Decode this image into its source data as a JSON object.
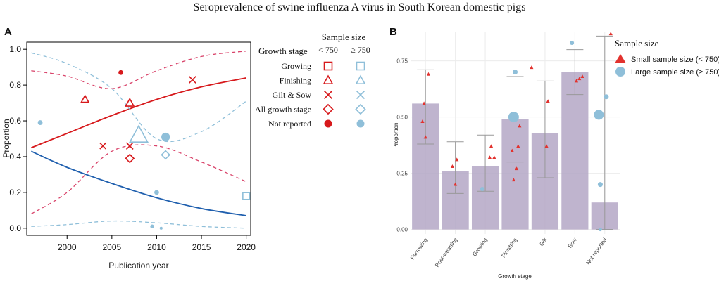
{
  "figure_title": "Seroprevalence of swine influenza A virus in South Korean domestic pigs",
  "colors": {
    "red": "#d7191c",
    "redDash": "#d9436a",
    "blue": "#1f5fae",
    "lightBlue": "#8fbfd9",
    "bar": "#b4a7c6",
    "grid": "#ececec",
    "errorbar": "#999999",
    "tri": "#e2322e"
  },
  "chart_data": [
    {
      "panel_label": "A",
      "type": "scatter",
      "title": "",
      "xlabel": "Publication year",
      "ylabel": "Proportion",
      "xlim": [
        1995.5,
        2020.5
      ],
      "ylim": [
        -0.04,
        1.04
      ],
      "x_ticks": [
        2000,
        2005,
        2010,
        2015,
        2020
      ],
      "x_tick_labels": [
        "2000",
        "2005",
        "2010",
        "2015",
        "2020"
      ],
      "y_ticks": [
        0,
        0.2,
        0.4,
        0.6,
        0.8,
        1.0
      ],
      "y_tick_labels": [
        "0.0",
        "0.2",
        "0.4",
        "0.6",
        "0.8",
        "1.0"
      ],
      "legend": {
        "title": "Growth stage",
        "header": "Sample size",
        "col_small": "< 750",
        "col_large": "≥ 750",
        "rows": [
          {
            "label": "Growing",
            "shape": "square"
          },
          {
            "label": "Finishing",
            "shape": "triangle"
          },
          {
            "label": "Gilt & Sow",
            "shape": "cross"
          },
          {
            "label": "All growth stage",
            "shape": "diamond"
          },
          {
            "label": "Not reported",
            "shape": "circle"
          }
        ]
      },
      "series": [
        {
          "name": "Sample size < 750",
          "stats_fit": "red",
          "points": [
            {
              "x": 2006,
              "y": 0.87,
              "shape": "circle",
              "size": 1
            },
            {
              "x": 2014,
              "y": 0.83,
              "shape": "cross",
              "size": 1
            },
            {
              "x": 2002,
              "y": 0.72,
              "shape": "triangle",
              "size": 1
            },
            {
              "x": 2007,
              "y": 0.7,
              "shape": "triangle",
              "size": 1.1
            },
            {
              "x": 2004,
              "y": 0.46,
              "shape": "cross",
              "size": 0.9
            },
            {
              "x": 2007,
              "y": 0.46,
              "shape": "cross",
              "size": 1
            },
            {
              "x": 2007,
              "y": 0.39,
              "shape": "diamond",
              "size": 1
            }
          ]
        },
        {
          "name": "Sample size ≥ 750",
          "stats_fit": "blue",
          "points": [
            {
              "x": 1997,
              "y": 0.59,
              "shape": "circle",
              "size": 1
            },
            {
              "x": 2008,
              "y": 0.52,
              "shape": "triangle",
              "size": 2.4
            },
            {
              "x": 2011,
              "y": 0.51,
              "shape": "circle",
              "size": 1.8
            },
            {
              "x": 2011,
              "y": 0.41,
              "shape": "diamond",
              "size": 1
            },
            {
              "x": 2010,
              "y": 0.2,
              "shape": "circle",
              "size": 1
            },
            {
              "x": 2020,
              "y": 0.18,
              "shape": "square",
              "size": 1
            },
            {
              "x": 2009.5,
              "y": 0.01,
              "shape": "circle",
              "size": 0.8
            },
            {
              "x": 2010.5,
              "y": 0.0,
              "shape": "circle",
              "size": 0.6
            }
          ]
        }
      ],
      "fits": [
        {
          "name": "< 750 fit",
          "line_color": "red",
          "x": [
            1996,
            2000,
            2005,
            2010,
            2015,
            2020
          ],
          "y": [
            0.45,
            0.53,
            0.63,
            0.72,
            0.79,
            0.84
          ],
          "ci_upper": [
            0.88,
            0.85,
            0.78,
            0.88,
            0.96,
            0.99
          ],
          "ci_lower": [
            0.08,
            0.2,
            0.43,
            0.46,
            0.37,
            0.26
          ]
        },
        {
          "name": "≥ 750 fit",
          "line_color": "blue",
          "x": [
            1996,
            2000,
            2005,
            2010,
            2015,
            2020
          ],
          "y": [
            0.43,
            0.34,
            0.25,
            0.17,
            0.11,
            0.07
          ],
          "ci_upper": [
            0.98,
            0.92,
            0.78,
            0.5,
            0.54,
            0.71
          ],
          "ci_lower": [
            0.01,
            0.02,
            0.04,
            0.03,
            0.01,
            0.0
          ]
        }
      ]
    },
    {
      "panel_label": "B",
      "type": "bar",
      "title": "",
      "xlabel": "Growth stage",
      "ylabel": "Proportion",
      "ylim": [
        -0.02,
        0.88
      ],
      "y_ticks": [
        0,
        0.25,
        0.5,
        0.75
      ],
      "y_tick_labels": [
        "0.00",
        "0.25",
        "0.50",
        "0.75"
      ],
      "categories": [
        "Farrowing",
        "Post-weaning",
        "Growing",
        "Finishing",
        "Gilt",
        "Sow",
        "Not reported"
      ],
      "values": [
        0.56,
        0.26,
        0.28,
        0.49,
        0.43,
        0.7,
        0.12
      ],
      "ci_lower": [
        0.38,
        0.16,
        0.17,
        0.3,
        0.23,
        0.6,
        0.0
      ],
      "ci_upper": [
        0.71,
        0.39,
        0.42,
        0.68,
        0.66,
        0.8,
        0.86
      ],
      "legend": {
        "title": "Sample size",
        "entries": [
          "Small sample size (< 750)",
          "Large sample size (≥ 750)"
        ]
      },
      "points": [
        {
          "category": "Farrowing",
          "y": 0.69,
          "type": "small",
          "dx": 0.1,
          "size": 1
        },
        {
          "category": "Farrowing",
          "y": 0.56,
          "type": "small",
          "dx": -0.05,
          "size": 1
        },
        {
          "category": "Farrowing",
          "y": 0.48,
          "type": "small",
          "dx": -0.1,
          "size": 1
        },
        {
          "category": "Farrowing",
          "y": 0.41,
          "type": "small",
          "dx": 0.0,
          "size": 1
        },
        {
          "category": "Post-weaning",
          "y": 0.31,
          "type": "small",
          "dx": 0.05,
          "size": 1
        },
        {
          "category": "Post-weaning",
          "y": 0.28,
          "type": "small",
          "dx": -0.1,
          "size": 1
        },
        {
          "category": "Post-weaning",
          "y": 0.2,
          "type": "small",
          "dx": 0.0,
          "size": 1
        },
        {
          "category": "Growing",
          "y": 0.37,
          "type": "small",
          "dx": 0.2,
          "size": 1
        },
        {
          "category": "Growing",
          "y": 0.32,
          "type": "small",
          "dx": 0.3,
          "size": 1
        },
        {
          "category": "Growing",
          "y": 0.32,
          "type": "small",
          "dx": 0.15,
          "size": 1
        },
        {
          "category": "Growing",
          "y": 0.18,
          "type": "large",
          "dx": -0.1,
          "size": 0.6
        },
        {
          "category": "Finishing",
          "y": 0.72,
          "type": "small",
          "dx": 0.55,
          "size": 1
        },
        {
          "category": "Finishing",
          "y": 0.7,
          "type": "large",
          "dx": 0.0,
          "size": 0.7
        },
        {
          "category": "Finishing",
          "y": 0.5,
          "type": "large",
          "dx": -0.05,
          "size": 1.5
        },
        {
          "category": "Finishing",
          "y": 0.46,
          "type": "small",
          "dx": 0.15,
          "size": 1
        },
        {
          "category": "Finishing",
          "y": 0.37,
          "type": "small",
          "dx": 0.1,
          "size": 1
        },
        {
          "category": "Finishing",
          "y": 0.35,
          "type": "small",
          "dx": -0.1,
          "size": 1
        },
        {
          "category": "Finishing",
          "y": 0.27,
          "type": "small",
          "dx": 0.05,
          "size": 1
        },
        {
          "category": "Finishing",
          "y": 0.22,
          "type": "small",
          "dx": -0.05,
          "size": 1
        },
        {
          "category": "Gilt",
          "y": 0.57,
          "type": "small",
          "dx": 0.1,
          "size": 1
        },
        {
          "category": "Gilt",
          "y": 0.37,
          "type": "small",
          "dx": 0.05,
          "size": 1
        },
        {
          "category": "Sow",
          "y": 0.83,
          "type": "large",
          "dx": -0.1,
          "size": 0.6
        },
        {
          "category": "Sow",
          "y": 0.68,
          "type": "small",
          "dx": 0.25,
          "size": 1
        },
        {
          "category": "Sow",
          "y": 0.67,
          "type": "small",
          "dx": 0.15,
          "size": 1
        },
        {
          "category": "Sow",
          "y": 0.66,
          "type": "small",
          "dx": 0.05,
          "size": 1
        },
        {
          "category": "Not reported",
          "y": 0.87,
          "type": "small",
          "dx": 0.2,
          "size": 1
        },
        {
          "category": "Not reported",
          "y": 0.59,
          "type": "large",
          "dx": 0.05,
          "size": 0.7
        },
        {
          "category": "Not reported",
          "y": 0.51,
          "type": "large",
          "dx": -0.2,
          "size": 1.4
        },
        {
          "category": "Not reported",
          "y": 0.2,
          "type": "large",
          "dx": -0.15,
          "size": 0.7
        },
        {
          "category": "Not reported",
          "y": 0.0,
          "type": "large",
          "dx": -0.15,
          "size": 0.5
        }
      ]
    }
  ]
}
